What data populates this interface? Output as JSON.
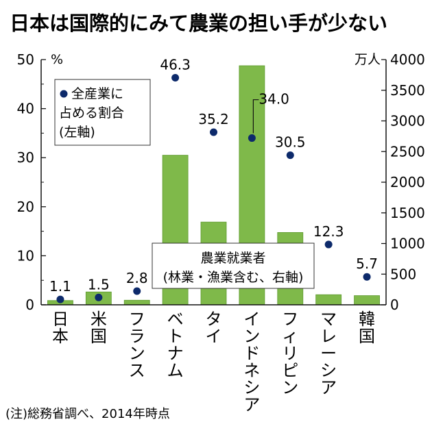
{
  "note": "(注)総務省調べ、2014年時点",
  "chart_data": {
    "type": "bar+scatter",
    "title": "日本は国際的にみて農業の担い手が少ない",
    "categories": [
      "日本",
      "米国",
      "フランス",
      "ベトナム",
      "タイ",
      "インドネシア",
      "フィリピン",
      "マレーシア",
      "韓国"
    ],
    "left_axis": {
      "unit": "%",
      "range": [
        0,
        50
      ],
      "ticks": [
        0,
        10,
        20,
        30,
        40,
        50
      ]
    },
    "right_axis": {
      "unit": "万人",
      "range": [
        0,
        4000
      ],
      "ticks": [
        0,
        500,
        1000,
        1500,
        2000,
        2500,
        3000,
        3500,
        4000
      ]
    },
    "series": [
      {
        "name": "全産業に占める割合(左軸)",
        "legend_lines": [
          "全産業に",
          "占める割合",
          "(左軸)"
        ],
        "kind": "scatter",
        "axis": "left",
        "values": [
          1.1,
          1.5,
          2.8,
          46.3,
          35.2,
          34.0,
          30.5,
          12.3,
          5.7
        ],
        "labels": [
          "1.1",
          "1.5",
          "2.8",
          "46.3",
          "35.2",
          "34.0",
          "30.5",
          "12.3",
          "5.7"
        ]
      },
      {
        "name": "農業就業者(林業・漁業含む、右軸)",
        "legend_lines": [
          "農業就業者",
          "(林業・漁業含む、右軸)"
        ],
        "kind": "bar",
        "axis": "right",
        "values": [
          70,
          210,
          75,
          2440,
          1350,
          3900,
          1180,
          165,
          150
        ]
      }
    ],
    "colors": {
      "bar": "#7fb94a",
      "bar_stroke": "#5d9a2e",
      "dot": "#0d2a6b"
    },
    "grid": false
  }
}
